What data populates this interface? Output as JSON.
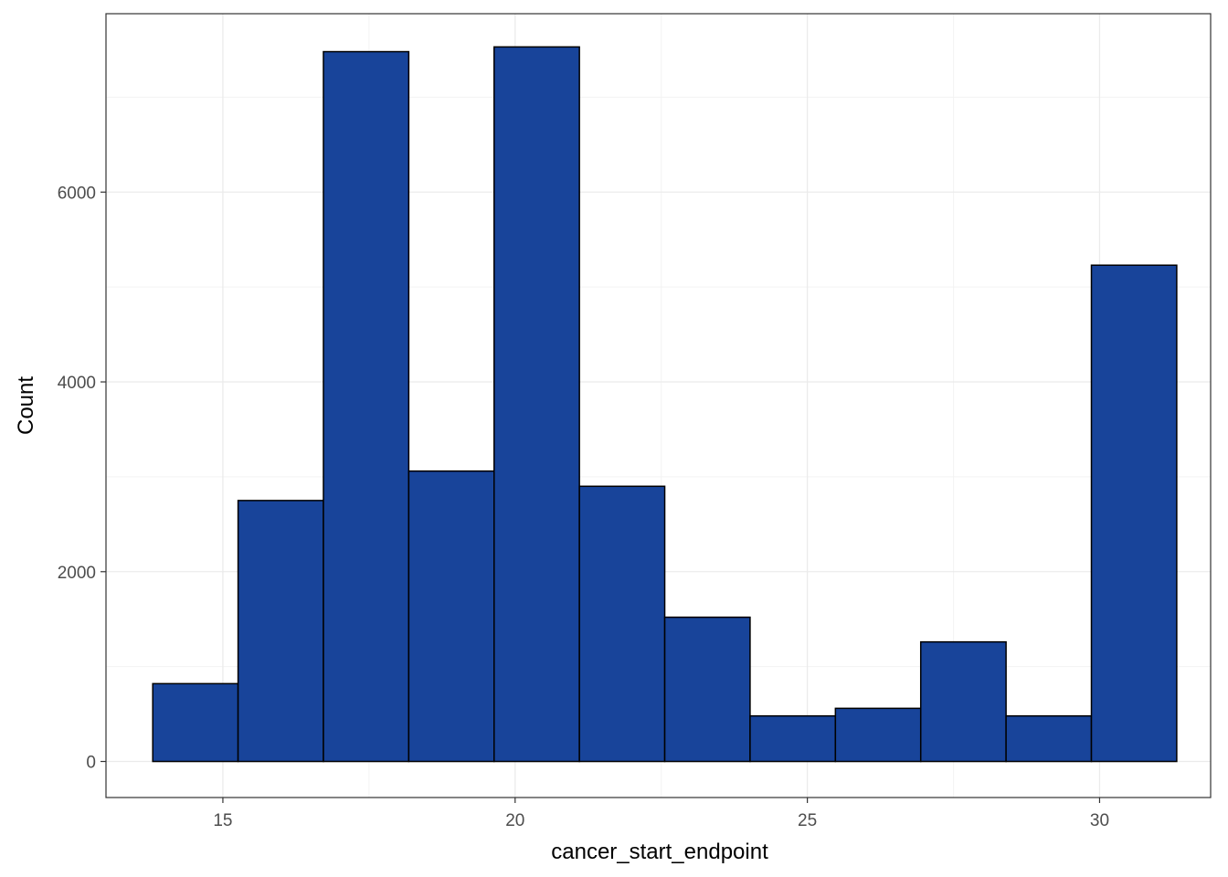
{
  "chart_data": {
    "type": "bar",
    "subtype": "histogram",
    "title": "",
    "xlabel": "cancer_start_endpoint",
    "ylabel": "Count",
    "xlim": [
      13.0,
      31.9
    ],
    "ylim": [
      -380,
      7880
    ],
    "x_ticks": [
      15,
      20,
      25,
      30
    ],
    "x_tick_labels": [
      "15",
      "20",
      "25",
      "30"
    ],
    "y_ticks": [
      0,
      2000,
      4000,
      6000
    ],
    "y_tick_labels": [
      "0",
      "2000",
      "4000",
      "6000"
    ],
    "bins": [
      {
        "x0": 13.8,
        "x1": 15.26,
        "count": 820
      },
      {
        "x0": 15.26,
        "x1": 16.72,
        "count": 2750
      },
      {
        "x0": 16.72,
        "x1": 18.18,
        "count": 7480
      },
      {
        "x0": 18.18,
        "x1": 19.64,
        "count": 3060
      },
      {
        "x0": 19.64,
        "x1": 21.1,
        "count": 7530
      },
      {
        "x0": 21.1,
        "x1": 22.56,
        "count": 2900
      },
      {
        "x0": 22.56,
        "x1": 24.02,
        "count": 1520
      },
      {
        "x0": 24.02,
        "x1": 25.48,
        "count": 480
      },
      {
        "x0": 25.48,
        "x1": 26.94,
        "count": 560
      },
      {
        "x0": 26.94,
        "x1": 28.4,
        "count": 1260
      },
      {
        "x0": 28.4,
        "x1": 29.86,
        "count": 480
      },
      {
        "x0": 29.86,
        "x1": 31.32,
        "count": 5230
      }
    ],
    "grid": true,
    "legend": "none",
    "colors": {
      "bar_fill": "#18449a",
      "bar_stroke": "#000000",
      "panel_border": "#333333",
      "grid_major": "#ebebeb",
      "grid_minor": "#f3f3f3",
      "tick_label": "#4d4d4d",
      "axis_title": "#000000"
    }
  }
}
